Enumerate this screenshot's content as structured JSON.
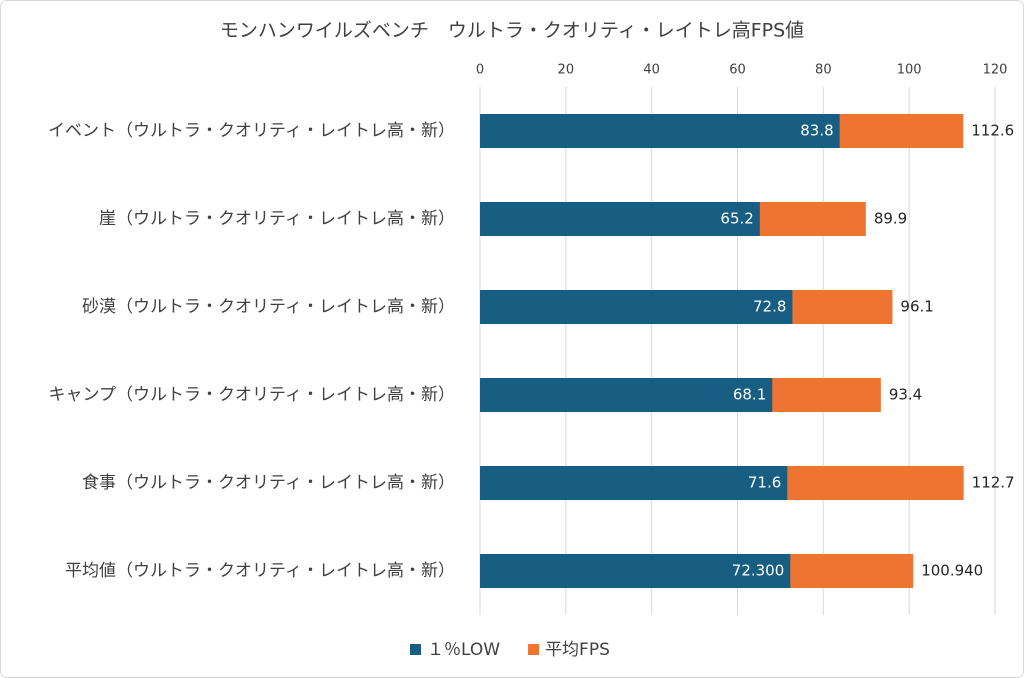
{
  "chart_data": {
    "type": "bar",
    "orientation": "horizontal",
    "overlap": true,
    "title": "モンハンワイルズベンチ　ウルトラ・クオリティ・レイトレ高FPS値",
    "categories": [
      "イベント（ウルトラ・クオリティ・レイトレ高・新）",
      "崖（ウルトラ・クオリティ・レイトレ高・新）",
      "砂漠（ウルトラ・クオリティ・レイトレ高・新）",
      "キャンプ（ウルトラ・クオリティ・レイトレ高・新）",
      "食事（ウルトラ・クオリティ・レイトレ高・新）",
      "平均値（ウルトラ・クオリティ・レイトレ高・新）"
    ],
    "series": [
      {
        "name": "平均FPS",
        "color": "#ed7431",
        "values": [
          112.6,
          89.9,
          96.1,
          93.4,
          112.7,
          100.94
        ],
        "value_labels": [
          "112.6",
          "89.9",
          "96.1",
          "93.4",
          "112.7",
          "100.940"
        ]
      },
      {
        "name": "１％LOW",
        "color": "#175e82",
        "values": [
          83.8,
          65.2,
          72.8,
          68.1,
          71.6,
          72.3
        ],
        "value_labels": [
          "83.8",
          "65.2",
          "72.8",
          "68.1",
          "71.6",
          "72.300"
        ]
      }
    ],
    "legend_order": [
      "１％LOW",
      "平均FPS"
    ],
    "xlim": [
      0,
      120
    ],
    "xticks": [
      0,
      20,
      40,
      60,
      80,
      100,
      120
    ],
    "grid": true,
    "legend": "bottom"
  }
}
